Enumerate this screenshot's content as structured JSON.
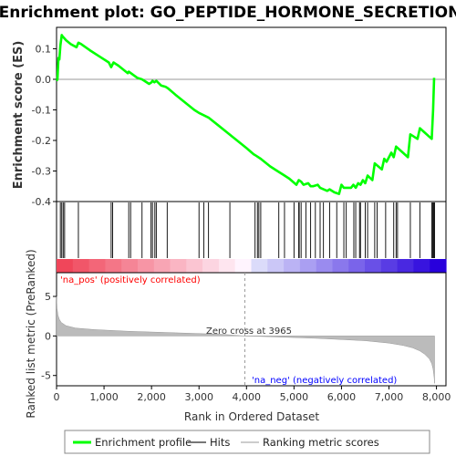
{
  "chart_data": {
    "type": "line",
    "title": "Enrichment plot: GO_PEPTIDE_HORMONE_SECRETION",
    "xlabel": "Rank in Ordered Dataset",
    "es_panel": {
      "ylabel": "Enrichment score (ES)",
      "xlim": [
        0,
        8200
      ],
      "ylim": [
        -0.4,
        0.17
      ],
      "y_ticks": [
        0.1,
        0.0,
        -0.1,
        -0.2,
        -0.3,
        -0.4
      ],
      "y_tick_labels": [
        "0.1",
        "0.0",
        "-0.1",
        "-0.2",
        "-0.3",
        "-0.4"
      ],
      "series": [
        {
          "name": "Enrichment profile",
          "color": "#00ff00",
          "x": [
            0,
            20,
            40,
            60,
            80,
            110,
            130,
            160,
            200,
            300,
            420,
            460,
            520,
            700,
            900,
            1100,
            1150,
            1200,
            1300,
            1500,
            1520,
            1700,
            1800,
            1850,
            1950,
            2000,
            2020,
            2060,
            2100,
            2200,
            2300,
            2350,
            2500,
            2700,
            2900,
            3000,
            3200,
            3400,
            3600,
            3800,
            4000,
            4150,
            4200,
            4300,
            4500,
            4650,
            4800,
            4900,
            5050,
            5100,
            5150,
            5200,
            5300,
            5350,
            5400,
            5500,
            5550,
            5700,
            5750,
            5850,
            5950,
            6000,
            6050,
            6200,
            6250,
            6300,
            6350,
            6400,
            6450,
            6500,
            6550,
            6650,
            6700,
            6850,
            6900,
            6950,
            7050,
            7100,
            7150,
            7400,
            7450,
            7600,
            7650,
            7900,
            7930,
            7950
          ],
          "y": [
            -0.005,
            0.0,
            0.07,
            0.065,
            0.11,
            0.145,
            0.14,
            0.135,
            0.128,
            0.115,
            0.105,
            0.12,
            0.115,
            0.095,
            0.075,
            0.055,
            0.04,
            0.055,
            0.045,
            0.02,
            0.025,
            0.005,
            0.0,
            -0.005,
            -0.015,
            -0.01,
            -0.005,
            -0.01,
            -0.005,
            -0.02,
            -0.025,
            -0.03,
            -0.05,
            -0.075,
            -0.1,
            -0.11,
            -0.125,
            -0.15,
            -0.175,
            -0.2,
            -0.225,
            -0.245,
            -0.25,
            -0.26,
            -0.285,
            -0.3,
            -0.315,
            -0.325,
            -0.345,
            -0.33,
            -0.335,
            -0.345,
            -0.34,
            -0.35,
            -0.35,
            -0.345,
            -0.355,
            -0.365,
            -0.36,
            -0.37,
            -0.375,
            -0.345,
            -0.355,
            -0.355,
            -0.345,
            -0.355,
            -0.34,
            -0.345,
            -0.33,
            -0.34,
            -0.315,
            -0.33,
            -0.275,
            -0.295,
            -0.26,
            -0.27,
            -0.24,
            -0.255,
            -0.22,
            -0.255,
            -0.18,
            -0.195,
            -0.16,
            -0.195,
            -0.1,
            0.005
          ]
        }
      ]
    },
    "hits_panel": {
      "legend_name": "Hits",
      "positions": [
        80,
        110,
        140,
        170,
        460,
        1150,
        1180,
        1520,
        1560,
        1800,
        1990,
        2020,
        2070,
        2100,
        2330,
        3000,
        3100,
        3200,
        3650,
        4180,
        4230,
        4260,
        4300,
        4680,
        4800,
        5000,
        5100,
        5110,
        5150,
        5250,
        5350,
        5450,
        5550,
        5620,
        5750,
        5900,
        6050,
        6100,
        6260,
        6300,
        6380,
        6400,
        6500,
        6550,
        6700,
        6750,
        6930,
        7100,
        7150,
        7180,
        7450,
        7650,
        7900,
        7920,
        7940,
        7960
      ]
    },
    "rank_panel": {
      "ylabel": "Ranked list metric (PreRanked)",
      "legend_name": "Ranking metric scores",
      "ylim": [
        -6.3,
        8.0
      ],
      "y_ticks": [
        5,
        0,
        -5
      ],
      "y_tick_labels": [
        "5",
        "0",
        "-5"
      ],
      "x": [
        0,
        10,
        30,
        60,
        100,
        200,
        400,
        800,
        1500,
        2500,
        3500,
        3965,
        4500,
        5500,
        6500,
        7000,
        7300,
        7500,
        7650,
        7750,
        7850,
        7900,
        7930,
        7950,
        7960
      ],
      "y": [
        5.0,
        3.5,
        2.6,
        2.1,
        1.7,
        1.3,
        1.0,
        0.8,
        0.6,
        0.4,
        0.2,
        0.0,
        -0.1,
        -0.3,
        -0.6,
        -0.9,
        -1.2,
        -1.5,
        -1.9,
        -2.3,
        -2.9,
        -3.5,
        -4.2,
        -5.2,
        -6.0
      ],
      "zero_cross_label": "Zero cross at 3965",
      "zero_cross_x": 3965,
      "pos_label": "'na_pos' (positively correlated)",
      "neg_label": "'na_neg' (negatively correlated)"
    },
    "x_ticks": [
      0,
      1000,
      2000,
      3000,
      4000,
      5000,
      6000,
      7000,
      8000
    ],
    "x_tick_labels": [
      "0",
      "1,000",
      "2,000",
      "3,000",
      "4,000",
      "5,000",
      "6,000",
      "7,000",
      "8,000"
    ],
    "legend_placement": "bottom",
    "legend": [
      "Enrichment profile",
      "Hits",
      "Ranking metric scores"
    ],
    "colors": {
      "profile": "#00ff00",
      "hits": "#000000",
      "metric": "#bbbbbb",
      "pos_text": "#ff0000",
      "neg_text": "#0000ff"
    }
  }
}
